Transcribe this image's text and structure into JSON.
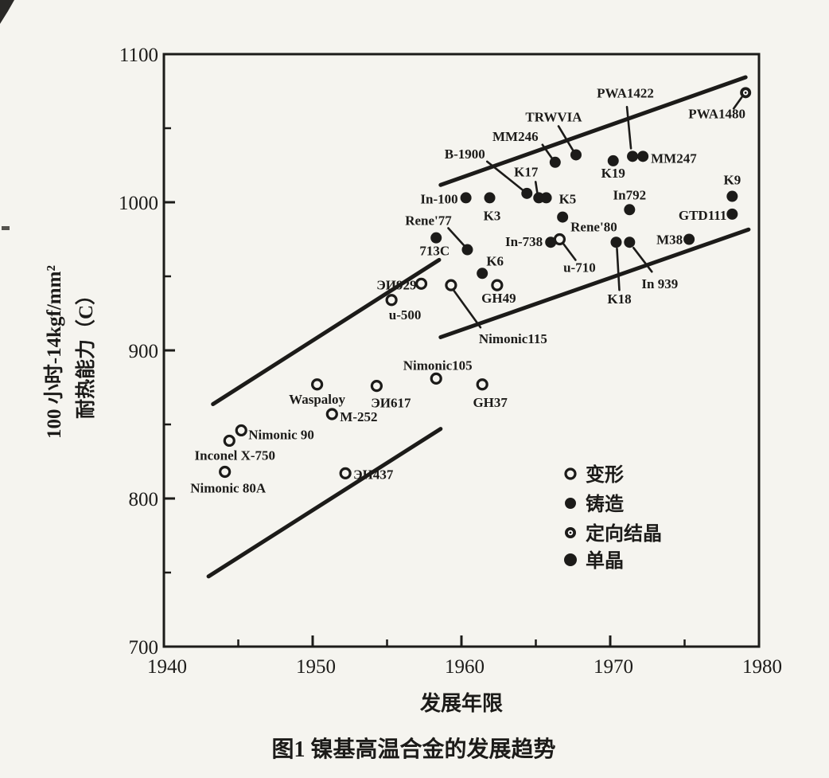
{
  "figure": {
    "caption": "图1  镍基高温合金的发展趋势",
    "x_axis_label": "发展年限",
    "y_axis_label_line1": "100 小时-14kgf/mm²",
    "y_axis_label_line2": "耐热能力（C）"
  },
  "legend": {
    "items": [
      {
        "label": "变形",
        "marker": "wrought"
      },
      {
        "label": "铸造",
        "marker": "cast"
      },
      {
        "label": "定向结晶",
        "marker": "ds"
      },
      {
        "label": "单晶",
        "marker": "sc"
      }
    ]
  },
  "colors": {
    "ink": "#1c1b19",
    "paper": "#f5f4ef"
  },
  "chart_data": {
    "type": "scatter",
    "title": "图1  镍基高温合金的发展趋势",
    "xlabel": "发展年限",
    "ylabel": "100 小时-14kgf/mm² 耐热能力（C）",
    "xlim": [
      1940,
      1980
    ],
    "ylim": [
      700,
      1100
    ],
    "x_ticks": [
      1940,
      1950,
      1960,
      1970,
      1980
    ],
    "x_minor_ticks": [
      1945,
      1955,
      1965,
      1975
    ],
    "y_ticks": [
      700,
      800,
      900,
      1000,
      1100
    ],
    "y_minor_ticks": [
      750,
      850,
      950,
      1050
    ],
    "grid": false,
    "legend_position": "lower right inside",
    "series": [
      {
        "name": "变形",
        "marker": "wrought",
        "points": [
          {
            "label": "Nimonic 80A",
            "year": 1944.1,
            "value": 818,
            "dx": 4,
            "dy": 26,
            "anchor": "middle"
          },
          {
            "label": "Inconel X-750",
            "year": 1944.4,
            "value": 839,
            "dx": 7,
            "dy": 24,
            "anchor": "middle"
          },
          {
            "label": "Nimonic 90",
            "year": 1945.2,
            "value": 846,
            "dx": 9,
            "dy": 11,
            "anchor": "start"
          },
          {
            "label": "ЭИ437",
            "year": 1952.2,
            "value": 817,
            "dx": 10,
            "dy": 7,
            "anchor": "start"
          },
          {
            "label": "Waspaloy",
            "year": 1950.3,
            "value": 877,
            "dx": 0,
            "dy": 24,
            "anchor": "middle"
          },
          {
            "label": "M-252",
            "year": 1951.3,
            "value": 857,
            "dx": 10,
            "dy": 9,
            "anchor": "start"
          },
          {
            "label": "ЭИ617",
            "year": 1954.3,
            "value": 876,
            "dx": 18,
            "dy": 27,
            "anchor": "middle"
          },
          {
            "label": "Nimonic105",
            "year": 1958.3,
            "value": 881,
            "dx": 2,
            "dy": -11,
            "anchor": "middle"
          },
          {
            "label": "GH37",
            "year": 1961.4,
            "value": 877,
            "dx": 10,
            "dy": 28,
            "anchor": "middle"
          },
          {
            "label": "u-500",
            "year": 1955.3,
            "value": 934,
            "dx": 17,
            "dy": 24,
            "anchor": "middle"
          },
          {
            "label": "ЭИ929",
            "year": 1957.3,
            "value": 945,
            "dx": -6,
            "dy": 7,
            "anchor": "end"
          },
          {
            "label": "Nimonic115",
            "year": 1959.3,
            "value": 944,
            "dx": 35,
            "dy": 73,
            "anchor": "start",
            "leader": [
              3,
              6,
              37,
              53
            ]
          },
          {
            "label": "GH49",
            "year": 1962.4,
            "value": 944,
            "dx": 2,
            "dy": 22,
            "anchor": "middle"
          },
          {
            "label": "u-710",
            "year": 1966.6,
            "value": 975,
            "dx": 25,
            "dy": 41,
            "anchor": "middle",
            "leader": [
              5,
              6,
              20,
              26
            ]
          }
        ]
      },
      {
        "name": "铸造",
        "marker": "cast",
        "points": [
          {
            "label": "713C",
            "year": 1958.3,
            "value": 976,
            "dx": -2,
            "dy": 22,
            "anchor": "middle"
          },
          {
            "label": "Rene'77",
            "year": 1960.4,
            "value": 968,
            "dx": -49,
            "dy": -31,
            "anchor": "middle",
            "leader": [
              -4,
              -5,
              -24,
              -27
            ]
          },
          {
            "label": "In-100",
            "year": 1960.3,
            "value": 1003,
            "dx": -10,
            "dy": 7,
            "anchor": "end"
          },
          {
            "label": "K3",
            "year": 1961.9,
            "value": 1003,
            "dx": 3,
            "dy": 28,
            "anchor": "middle"
          },
          {
            "label": "K6",
            "year": 1961.4,
            "value": 952,
            "dx": 16,
            "dy": -10,
            "anchor": "middle"
          },
          {
            "label": "B-1900",
            "year": 1964.4,
            "value": 1006,
            "dx": -78,
            "dy": -44,
            "anchor": "middle",
            "leader": [
              -5,
              -4,
              -50,
              -40
            ]
          },
          {
            "label": "K17",
            "year": 1965.2,
            "value": 1003,
            "dx": -16,
            "dy": -27,
            "anchor": "middle",
            "leader": [
              -2,
              -7,
              -4,
              -20
            ]
          },
          {
            "label": "K5",
            "year": 1965.7,
            "value": 1003,
            "dx": 16,
            "dy": 7,
            "anchor": "start"
          },
          {
            "label": "In-738",
            "year": 1966.0,
            "value": 973,
            "dx": -10,
            "dy": 5,
            "anchor": "end"
          },
          {
            "label": "MM246",
            "year": 1966.3,
            "value": 1027,
            "dx": -50,
            "dy": -27,
            "anchor": "middle",
            "leader": [
              -4,
              -5,
              -16,
              -22
            ]
          },
          {
            "label": "TRWVIA",
            "year": 1967.7,
            "value": 1032,
            "dx": -28,
            "dy": -42,
            "anchor": "middle",
            "leader": [
              -4,
              -6,
              -22,
              -36
            ]
          },
          {
            "label": "Rene'80",
            "year": 1966.8,
            "value": 990,
            "dx": 10,
            "dy": 18,
            "anchor": "start"
          },
          {
            "label": "K19",
            "year": 1970.2,
            "value": 1028,
            "dx": 0,
            "dy": 21,
            "anchor": "middle"
          },
          {
            "label": "PWA1422",
            "year": 1971.5,
            "value": 1031,
            "dx": -9,
            "dy": -74,
            "anchor": "middle",
            "leader": [
              -2,
              -10,
              -7,
              -62
            ]
          },
          {
            "label": "MM247",
            "year": 1972.2,
            "value": 1031,
            "dx": 10,
            "dy": 8,
            "anchor": "start"
          },
          {
            "label": "In792",
            "year": 1971.3,
            "value": 995,
            "dx": 0,
            "dy": -13,
            "anchor": "middle"
          },
          {
            "label": "K18",
            "year": 1970.4,
            "value": 973,
            "dx": 4,
            "dy": 77,
            "anchor": "middle",
            "leader": [
              1,
              8,
              4,
              60
            ]
          },
          {
            "label": "In 939",
            "year": 1971.3,
            "value": 973,
            "dx": 38,
            "dy": 58,
            "anchor": "middle",
            "leader": [
              5,
              7,
              28,
              37
            ]
          },
          {
            "label": "M38",
            "year": 1975.3,
            "value": 975,
            "dx": -8,
            "dy": 6,
            "anchor": "end"
          },
          {
            "label": "GTD111",
            "year": 1978.2,
            "value": 992,
            "dx": -7,
            "dy": 7,
            "anchor": "end"
          },
          {
            "label": "K9",
            "year": 1978.2,
            "value": 1004,
            "dx": 0,
            "dy": -15,
            "anchor": "middle"
          }
        ]
      },
      {
        "name": "定向结晶",
        "marker": "ds",
        "points": [
          {
            "label": "PWA1480",
            "year": 1979.1,
            "value": 1074,
            "dx": -36,
            "dy": 32,
            "anchor": "middle",
            "leader": [
              -5,
              6,
              -15,
              20
            ]
          }
        ]
      },
      {
        "name": "单晶",
        "marker": "sc",
        "points": []
      }
    ],
    "trend_lines": [
      {
        "name": "wrought-band-upper",
        "x1": 1943.3,
        "y1": 863.7,
        "x2": 1958.5,
        "y2": 961.1
      },
      {
        "name": "cast-band-upper",
        "x1": 1958.6,
        "y1": 1011.7,
        "x2": 1979.1,
        "y2": 1084.4
      },
      {
        "name": "cast-band-lower",
        "x1": 1958.6,
        "y1": 908.9,
        "x2": 1979.3,
        "y2": 981.6
      },
      {
        "name": "wrought-band-lower",
        "x1": 1943.0,
        "y1": 747.4,
        "x2": 1958.6,
        "y2": 847.0
      }
    ]
  }
}
